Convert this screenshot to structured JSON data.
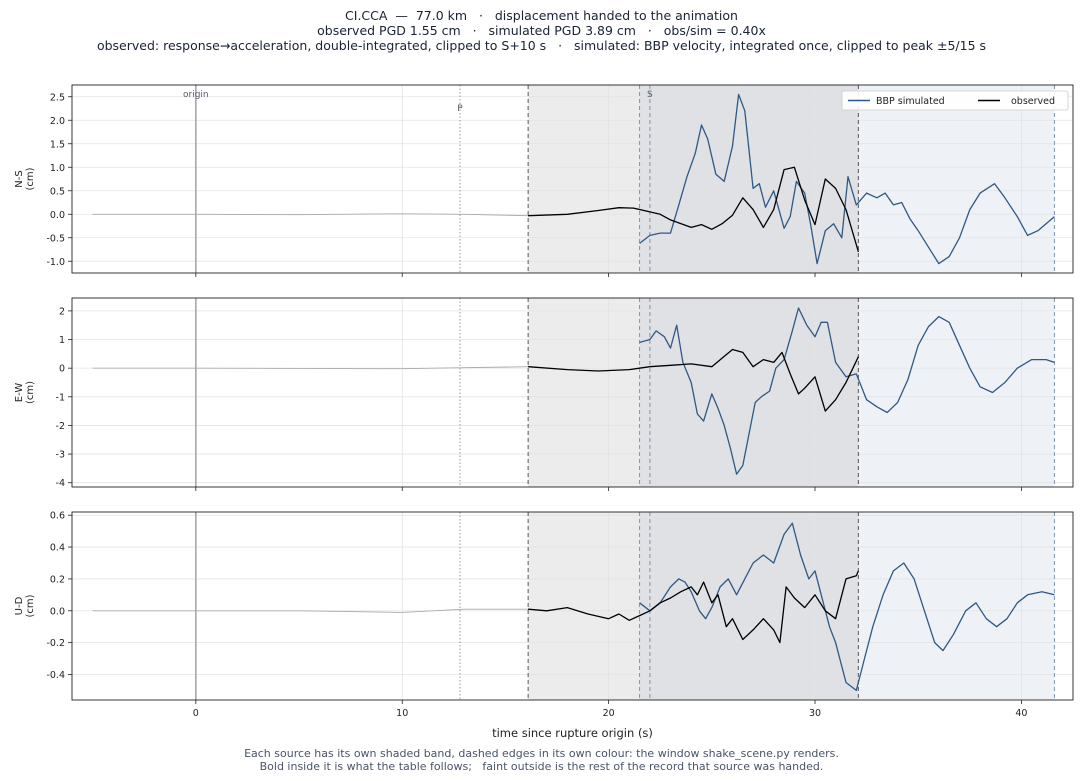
{
  "header": {
    "line1": "CI.CCA  —  77.0 km   ·   displacement handed to the animation",
    "line2": "observed PGD 1.55 cm   ·   simulated PGD 3.89 cm   ·   obs/sim = 0.40x",
    "line3": "observed: response→acceleration, double-integrated, clipped to S+10 s   ·   simulated: BBP velocity, integrated once, clipped to peak ±5/15 s"
  },
  "caption": {
    "line1": "Each source has its own shaded band, dashed edges in its own colour: the window shake_scene.py renders.",
    "line2": "Bold inside it is what the table follows;   faint outside is the rest of the record that source was handed."
  },
  "colors": {
    "simulated": "#2f5985",
    "observed": "#000000",
    "faint": "#aaaaaa",
    "obs_band": "#ececec",
    "sim_band": "#eef2f6",
    "overlap_band": "#dfe1e5",
    "obs_edge": "#555555",
    "sim_edge": "#7f95ab"
  },
  "chart_data": {
    "type": "line",
    "xlabel": "time since rupture origin (s)",
    "xlim": [
      -6.0,
      42.5
    ],
    "xticks": [
      0,
      10,
      20,
      30,
      40
    ],
    "markers": {
      "origin": {
        "t": 0,
        "label": "origin"
      },
      "p": {
        "t": 12.8,
        "label": "P"
      },
      "s": {
        "t": 22.0,
        "label": "S"
      }
    },
    "windows": {
      "observed": [
        16.1,
        32.1
      ],
      "simulated": [
        21.5,
        41.6
      ]
    },
    "legend": {
      "position": "top-right",
      "entries": [
        "BBP simulated",
        "observed"
      ]
    },
    "panels": [
      {
        "ylabel": "N-S\n(cm)",
        "ylim": [
          -1.25,
          2.75
        ],
        "yticks": [
          -1.0,
          -0.5,
          0.0,
          0.5,
          1.0,
          1.5,
          2.0,
          2.5
        ],
        "observed": [
          [
            -5,
            0
          ],
          [
            0,
            0
          ],
          [
            5,
            -0.01
          ],
          [
            10,
            0.01
          ],
          [
            13,
            0
          ],
          [
            16.1,
            -0.03
          ],
          [
            18,
            0
          ],
          [
            19.5,
            0.08
          ],
          [
            20.5,
            0.14
          ],
          [
            21.2,
            0.13
          ],
          [
            22,
            0.05
          ],
          [
            22.5,
            0
          ],
          [
            23,
            -0.12
          ],
          [
            24,
            -0.28
          ],
          [
            24.5,
            -0.22
          ],
          [
            25,
            -0.32
          ],
          [
            25.5,
            -0.2
          ],
          [
            26,
            -0.02
          ],
          [
            26.5,
            0.35
          ],
          [
            27,
            0.1
          ],
          [
            27.5,
            -0.28
          ],
          [
            28,
            0.1
          ],
          [
            28.5,
            0.95
          ],
          [
            29,
            1.0
          ],
          [
            29.5,
            0.3
          ],
          [
            30,
            -0.22
          ],
          [
            30.5,
            0.75
          ],
          [
            31,
            0.55
          ],
          [
            31.5,
            0.1
          ],
          [
            32.1,
            -0.8
          ]
        ],
        "simulated": [
          [
            21.5,
            -0.62
          ],
          [
            22,
            -0.45
          ],
          [
            22.5,
            -0.4
          ],
          [
            23,
            -0.4
          ],
          [
            23.4,
            0.2
          ],
          [
            23.8,
            0.8
          ],
          [
            24.2,
            1.3
          ],
          [
            24.5,
            1.9
          ],
          [
            24.8,
            1.6
          ],
          [
            25.2,
            0.85
          ],
          [
            25.6,
            0.7
          ],
          [
            26,
            1.45
          ],
          [
            26.3,
            2.55
          ],
          [
            26.6,
            2.2
          ],
          [
            27,
            0.55
          ],
          [
            27.3,
            0.65
          ],
          [
            27.6,
            0.15
          ],
          [
            28,
            0.5
          ],
          [
            28.5,
            -0.3
          ],
          [
            28.8,
            -0.05
          ],
          [
            29.1,
            0.7
          ],
          [
            29.5,
            0.45
          ],
          [
            29.8,
            -0.25
          ],
          [
            30.1,
            -1.05
          ],
          [
            30.5,
            -0.35
          ],
          [
            30.9,
            -0.2
          ],
          [
            31.3,
            -0.5
          ],
          [
            31.6,
            0.8
          ],
          [
            32,
            0.2
          ],
          [
            32.5,
            0.45
          ],
          [
            33,
            0.35
          ],
          [
            33.4,
            0.45
          ],
          [
            33.8,
            0.2
          ],
          [
            34.2,
            0.25
          ],
          [
            34.6,
            -0.1
          ],
          [
            35,
            -0.35
          ],
          [
            35.5,
            -0.7
          ],
          [
            36,
            -1.05
          ],
          [
            36.5,
            -0.9
          ],
          [
            37,
            -0.5
          ],
          [
            37.5,
            0.1
          ],
          [
            38,
            0.45
          ],
          [
            38.7,
            0.65
          ],
          [
            39.2,
            0.35
          ],
          [
            39.8,
            -0.05
          ],
          [
            40.3,
            -0.45
          ],
          [
            40.8,
            -0.35
          ],
          [
            41.6,
            -0.05
          ]
        ]
      },
      {
        "ylabel": "E-W\n(cm)",
        "ylim": [
          -4.15,
          2.45
        ],
        "yticks": [
          -4,
          -3,
          -2,
          -1,
          0,
          1,
          2
        ],
        "observed": [
          [
            -5,
            0
          ],
          [
            0,
            0
          ],
          [
            10,
            -0.02
          ],
          [
            16.1,
            0.05
          ],
          [
            18,
            -0.05
          ],
          [
            19.5,
            -0.1
          ],
          [
            21,
            -0.05
          ],
          [
            22,
            0.05
          ],
          [
            23,
            0.1
          ],
          [
            24,
            0.15
          ],
          [
            25,
            0.05
          ],
          [
            25.5,
            0.35
          ],
          [
            26,
            0.65
          ],
          [
            26.5,
            0.55
          ],
          [
            27,
            0.05
          ],
          [
            27.5,
            0.3
          ],
          [
            28,
            0.2
          ],
          [
            28.4,
            0.55
          ],
          [
            28.8,
            -0.2
          ],
          [
            29.2,
            -0.9
          ],
          [
            29.5,
            -0.7
          ],
          [
            30,
            -0.3
          ],
          [
            30.5,
            -1.5
          ],
          [
            31,
            -1.1
          ],
          [
            31.5,
            -0.5
          ],
          [
            32.1,
            0.4
          ]
        ],
        "simulated": [
          [
            21.5,
            0.9
          ],
          [
            22,
            1.0
          ],
          [
            22.3,
            1.3
          ],
          [
            22.7,
            1.1
          ],
          [
            23,
            0.7
          ],
          [
            23.3,
            1.5
          ],
          [
            23.6,
            0.2
          ],
          [
            24,
            -0.5
          ],
          [
            24.3,
            -1.6
          ],
          [
            24.6,
            -1.85
          ],
          [
            25,
            -0.9
          ],
          [
            25.3,
            -1.4
          ],
          [
            25.6,
            -2.0
          ],
          [
            25.9,
            -2.8
          ],
          [
            26.2,
            -3.7
          ],
          [
            26.5,
            -3.4
          ],
          [
            26.8,
            -2.3
          ],
          [
            27.1,
            -1.2
          ],
          [
            27.4,
            -1.0
          ],
          [
            27.8,
            -0.8
          ],
          [
            28.1,
            0
          ],
          [
            28.5,
            0.3
          ],
          [
            28.9,
            1.3
          ],
          [
            29.2,
            2.1
          ],
          [
            29.6,
            1.5
          ],
          [
            30,
            1.1
          ],
          [
            30.3,
            1.6
          ],
          [
            30.6,
            1.6
          ],
          [
            31,
            0.2
          ],
          [
            31.5,
            -0.3
          ],
          [
            32,
            -0.2
          ],
          [
            32.5,
            -1.1
          ],
          [
            33,
            -1.35
          ],
          [
            33.5,
            -1.55
          ],
          [
            34,
            -1.2
          ],
          [
            34.5,
            -0.4
          ],
          [
            35,
            0.8
          ],
          [
            35.5,
            1.45
          ],
          [
            36,
            1.8
          ],
          [
            36.5,
            1.6
          ],
          [
            37,
            0.8
          ],
          [
            37.5,
            0
          ],
          [
            38,
            -0.65
          ],
          [
            38.6,
            -0.85
          ],
          [
            39.2,
            -0.5
          ],
          [
            39.8,
            0
          ],
          [
            40.5,
            0.3
          ],
          [
            41.2,
            0.3
          ],
          [
            41.6,
            0.2
          ]
        ]
      },
      {
        "ylabel": "U-D\n(cm)",
        "ylim": [
          -0.56,
          0.62
        ],
        "yticks": [
          -0.4,
          -0.2,
          0.0,
          0.2,
          0.4,
          0.6
        ],
        "observed": [
          [
            -5,
            0
          ],
          [
            5,
            0
          ],
          [
            10,
            -0.01
          ],
          [
            13,
            0.01
          ],
          [
            16.1,
            0.01
          ],
          [
            17,
            0.0
          ],
          [
            18,
            0.02
          ],
          [
            19,
            -0.02
          ],
          [
            20,
            -0.05
          ],
          [
            20.5,
            -0.02
          ],
          [
            21,
            -0.06
          ],
          [
            21.5,
            -0.03
          ],
          [
            22,
            0.0
          ],
          [
            22.5,
            0.05
          ],
          [
            23,
            0.08
          ],
          [
            23.5,
            0.12
          ],
          [
            24,
            0.15
          ],
          [
            24.3,
            0.1
          ],
          [
            24.6,
            0.18
          ],
          [
            25,
            0.05
          ],
          [
            25.3,
            0.1
          ],
          [
            25.7,
            -0.1
          ],
          [
            26,
            -0.05
          ],
          [
            26.5,
            -0.18
          ],
          [
            27,
            -0.12
          ],
          [
            27.5,
            -0.05
          ],
          [
            28,
            -0.12
          ],
          [
            28.3,
            -0.2
          ],
          [
            28.6,
            0.15
          ],
          [
            29,
            0.08
          ],
          [
            29.5,
            0.02
          ],
          [
            30,
            0.1
          ],
          [
            30.5,
            0.0
          ],
          [
            31,
            -0.05
          ],
          [
            31.5,
            0.2
          ],
          [
            32,
            0.22
          ],
          [
            32.1,
            0.25
          ]
        ],
        "simulated": [
          [
            21.5,
            0.05
          ],
          [
            22,
            0.0
          ],
          [
            22.5,
            0.05
          ],
          [
            23,
            0.15
          ],
          [
            23.4,
            0.2
          ],
          [
            23.7,
            0.18
          ],
          [
            24,
            0.12
          ],
          [
            24.4,
            0.0
          ],
          [
            24.7,
            -0.05
          ],
          [
            25,
            0.02
          ],
          [
            25.4,
            0.15
          ],
          [
            25.8,
            0.2
          ],
          [
            26.2,
            0.1
          ],
          [
            26.6,
            0.2
          ],
          [
            27,
            0.3
          ],
          [
            27.5,
            0.35
          ],
          [
            28,
            0.3
          ],
          [
            28.5,
            0.48
          ],
          [
            28.9,
            0.55
          ],
          [
            29.3,
            0.35
          ],
          [
            29.7,
            0.2
          ],
          [
            30,
            0.25
          ],
          [
            30.3,
            0.1
          ],
          [
            30.7,
            -0.1
          ],
          [
            31,
            -0.2
          ],
          [
            31.5,
            -0.45
          ],
          [
            32,
            -0.5
          ],
          [
            32.4,
            -0.3
          ],
          [
            32.8,
            -0.1
          ],
          [
            33.3,
            0.1
          ],
          [
            33.8,
            0.25
          ],
          [
            34.3,
            0.3
          ],
          [
            34.8,
            0.2
          ],
          [
            35.3,
            0.0
          ],
          [
            35.8,
            -0.2
          ],
          [
            36.2,
            -0.25
          ],
          [
            36.7,
            -0.15
          ],
          [
            37.3,
            0.0
          ],
          [
            37.8,
            0.05
          ],
          [
            38.3,
            -0.05
          ],
          [
            38.8,
            -0.1
          ],
          [
            39.3,
            -0.05
          ],
          [
            39.8,
            0.05
          ],
          [
            40.3,
            0.1
          ],
          [
            41,
            0.12
          ],
          [
            41.6,
            0.1
          ]
        ]
      }
    ]
  }
}
